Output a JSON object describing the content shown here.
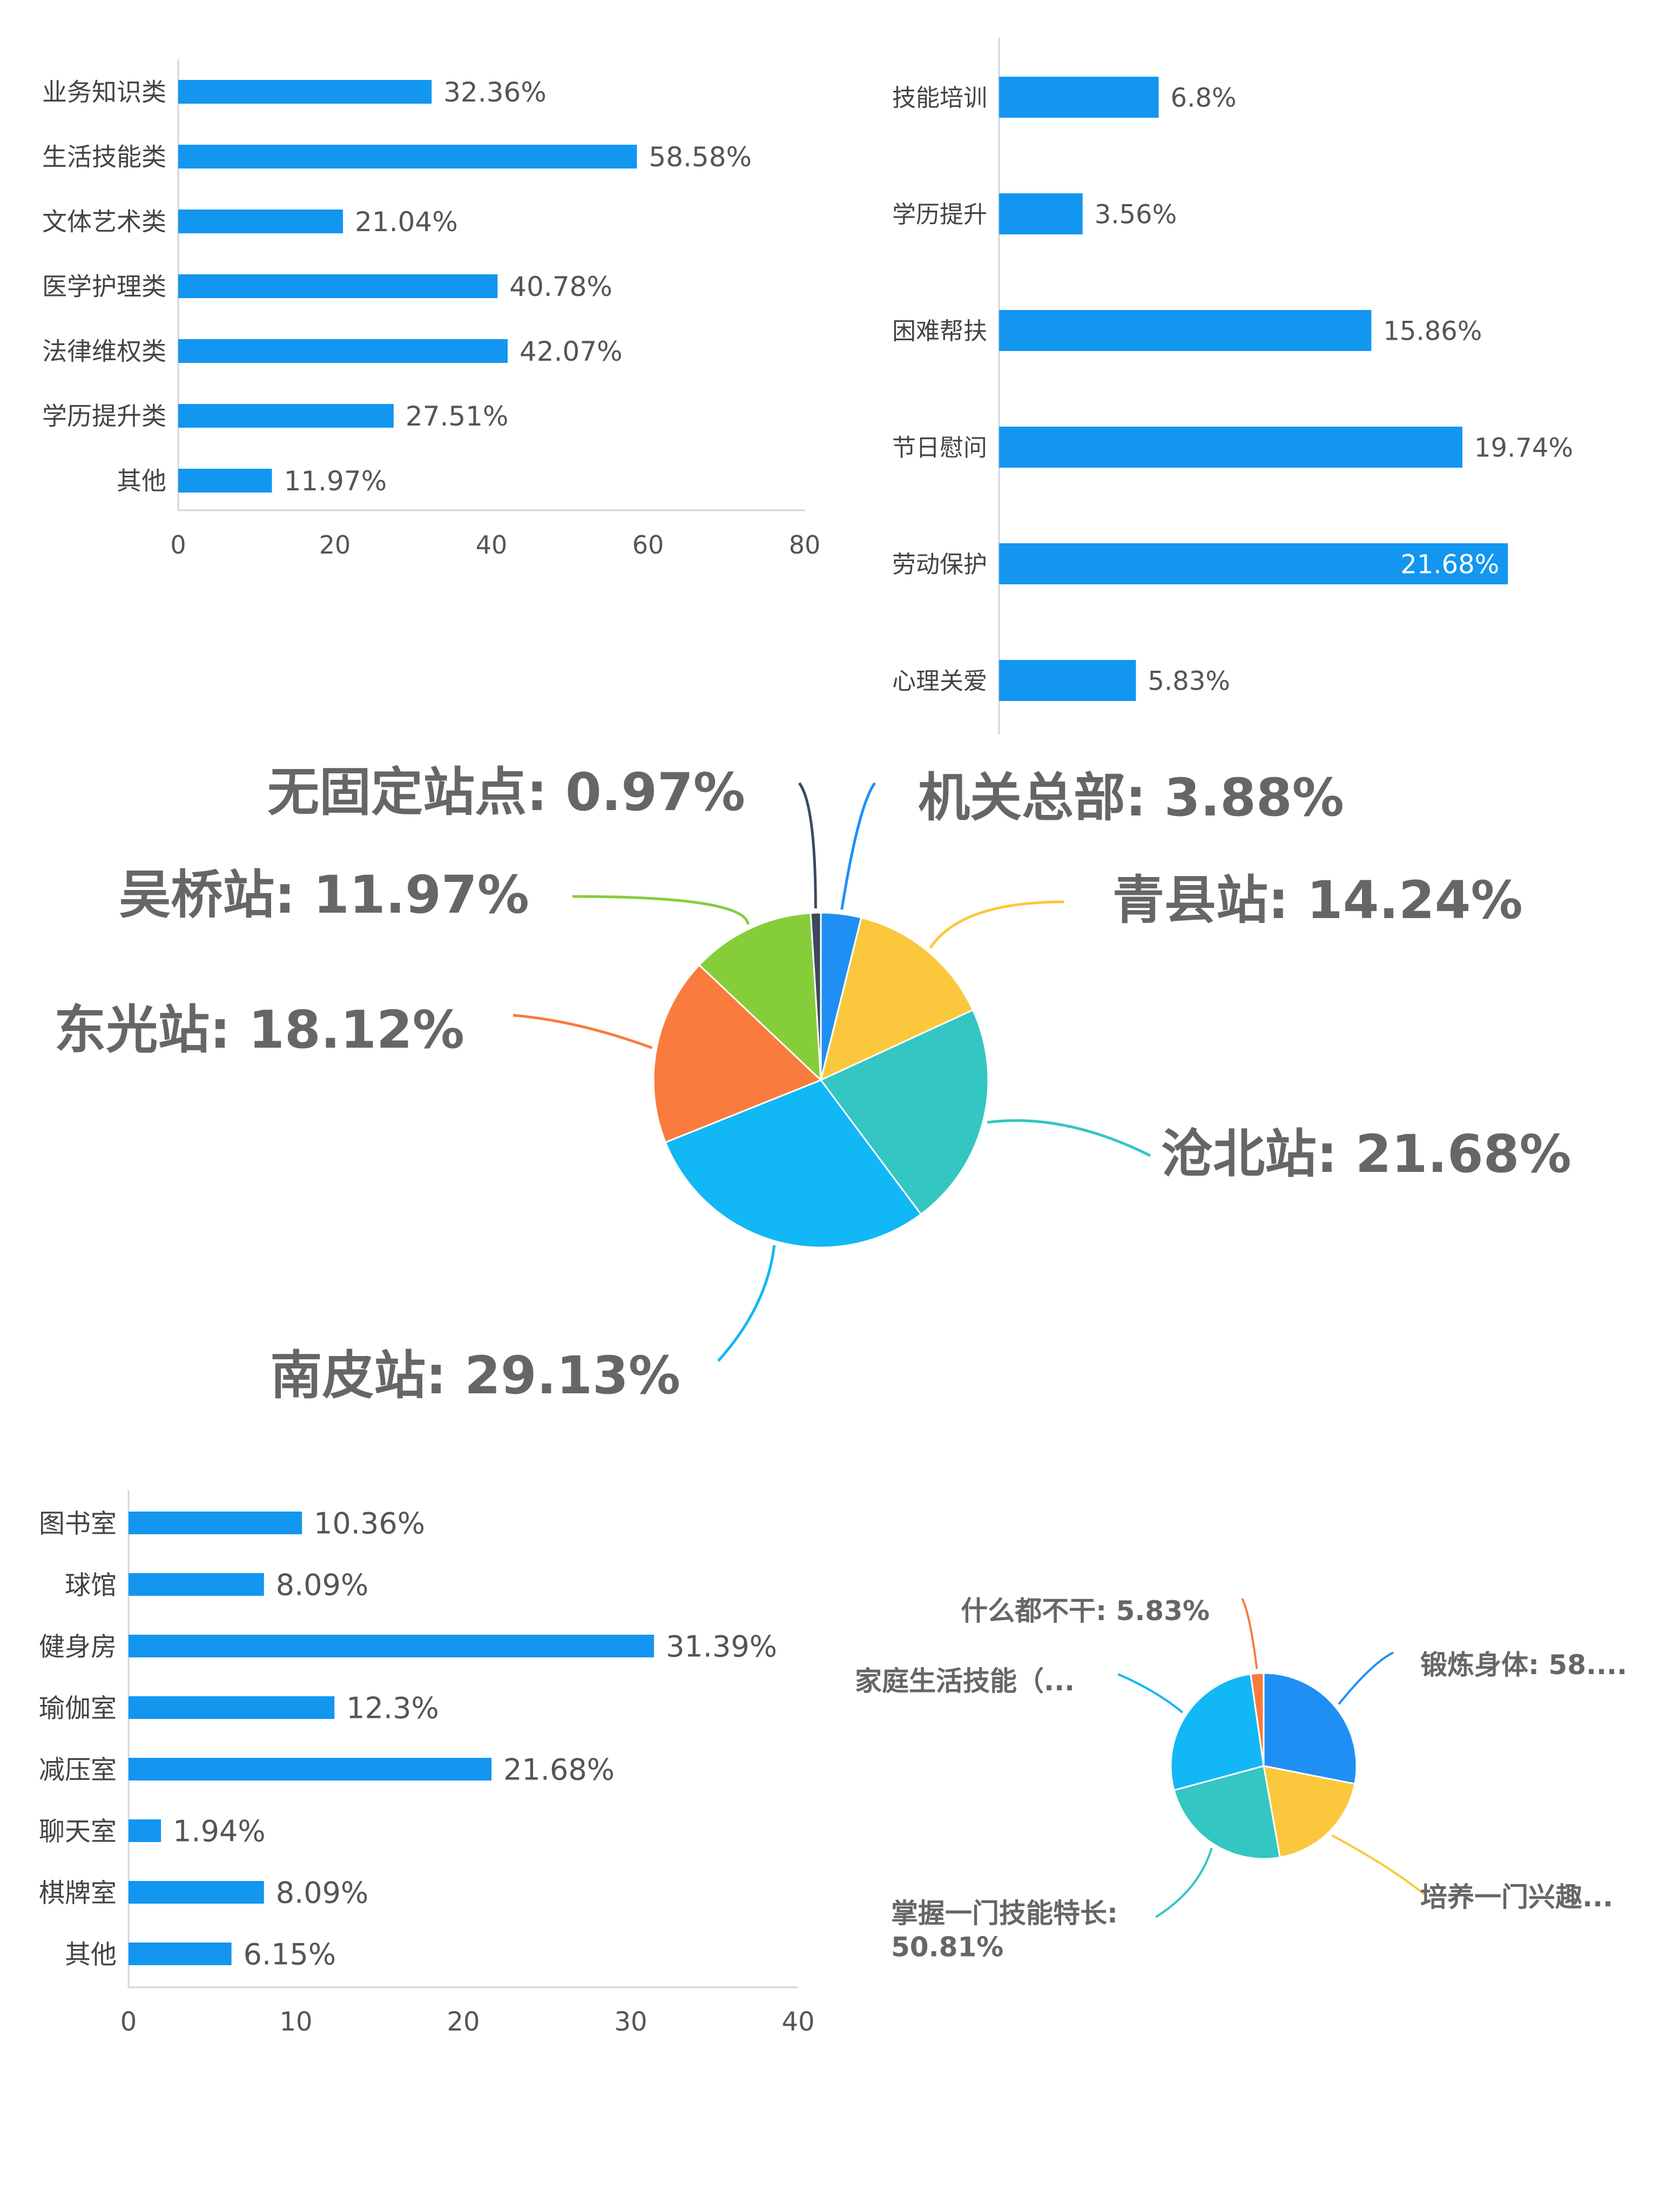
{
  "chart_data": [
    {
      "type": "bar",
      "orientation": "horizontal",
      "categories": [
        "业务知识类",
        "生活技能类",
        "文体艺术类",
        "医学护理类",
        "法律维权类",
        "学历提升类",
        "其他"
      ],
      "values": [
        32.36,
        58.58,
        21.04,
        40.78,
        42.07,
        27.51,
        11.97
      ],
      "value_labels": [
        "32.36%",
        "58.58%",
        "21.04%",
        "40.78%",
        "42.07%",
        "27.51%",
        "11.97%"
      ],
      "xlim": [
        0,
        80
      ],
      "xticks": [
        "0",
        "20",
        "40",
        "60",
        "80"
      ],
      "color": "#1296f0"
    },
    {
      "type": "bar",
      "orientation": "horizontal",
      "categories": [
        "技能培训",
        "学历提升",
        "困难帮扶",
        "节日慰问",
        "劳动保护",
        "心理关爱"
      ],
      "values": [
        6.8,
        3.56,
        15.86,
        19.74,
        21.68,
        5.83
      ],
      "value_labels": [
        "6.8%",
        "3.56%",
        "15.86%",
        "19.74%",
        "21.68%",
        "5.83%"
      ],
      "xlim": [
        0,
        26
      ],
      "color": "#1296f0"
    },
    {
      "type": "pie",
      "slices": [
        {
          "label": "机关总部: 3.88%",
          "value": 3.88,
          "color": "#1f8ff5"
        },
        {
          "label": "青县站: 14.24%",
          "value": 14.24,
          "color": "#fbc73c"
        },
        {
          "label": "沧北站: 21.68%",
          "value": 21.68,
          "color": "#33c6c2"
        },
        {
          "label": "南皮站: 29.13%",
          "value": 29.13,
          "color": "#12b7f5"
        },
        {
          "label": "东光站: 18.12%",
          "value": 18.12,
          "color": "#f97b3e"
        },
        {
          "label": "吴桥站: 11.97%",
          "value": 11.97,
          "color": "#86cd3a"
        },
        {
          "label": "无固定站点: 0.97%",
          "value": 0.97,
          "color": "#3a4a5c"
        }
      ]
    },
    {
      "type": "bar",
      "orientation": "horizontal",
      "categories": [
        "图书室",
        "球馆",
        "健身房",
        "瑜伽室",
        "减压室",
        "聊天室",
        "棋牌室",
        "其他"
      ],
      "values": [
        10.36,
        8.09,
        31.39,
        12.3,
        21.68,
        1.94,
        8.09,
        6.15
      ],
      "value_labels": [
        "10.36%",
        "8.09%",
        "31.39%",
        "12.3%",
        "21.68%",
        "1.94%",
        "8.09%",
        "6.15%"
      ],
      "xlim": [
        0,
        40
      ],
      "xticks": [
        "0",
        "10",
        "20",
        "30",
        "40"
      ],
      "color": "#1296f0"
    },
    {
      "type": "pie",
      "slices": [
        {
          "label": "锻炼身体: 58....",
          "value": 25,
          "color": "#1f8ff5"
        },
        {
          "label": "培养一门兴趣...",
          "value": 17,
          "color": "#fbc73c"
        },
        {
          "label": "掌握一门技能特长: 50.81%",
          "lines": [
            "掌握一门技能特长:",
            "50.81%"
          ],
          "value": 21,
          "color": "#33c6c2"
        },
        {
          "label": "家庭生活技能（...",
          "value": 24,
          "color": "#12b7f5"
        },
        {
          "label": "什么都不干: 5.83%",
          "value": 2,
          "color": "#f97b3e"
        }
      ]
    }
  ]
}
